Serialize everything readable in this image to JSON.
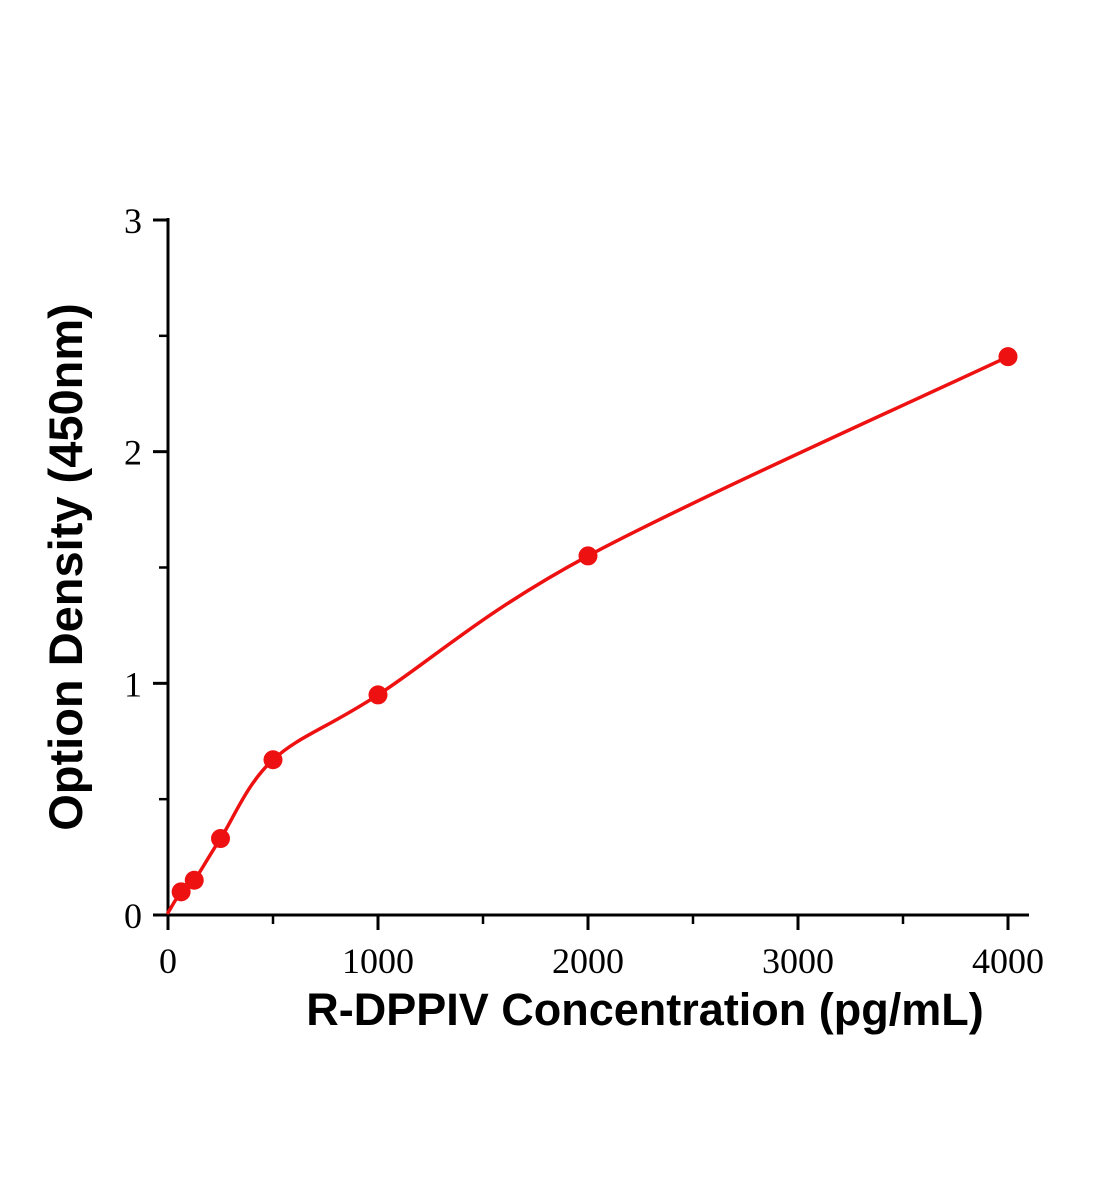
{
  "chart_data": {
    "type": "scatter",
    "title": "",
    "xlabel": "R-DPPIV Concentration (pg/mL)",
    "ylabel": "Option Density (450nm)",
    "x": [
      62.5,
      125,
      250,
      500,
      1000,
      2000,
      4000
    ],
    "y": [
      0.1,
      0.15,
      0.33,
      0.67,
      0.95,
      1.55,
      2.41
    ],
    "curve_start": {
      "x": 0,
      "y": 0.01
    },
    "xlim": [
      0,
      4100
    ],
    "ylim": [
      0,
      3
    ],
    "x_major_ticks": [
      0,
      1000,
      2000,
      3000,
      4000
    ],
    "x_major_tick_labels": [
      "0",
      "1000",
      "2000",
      "3000",
      "4000"
    ],
    "x_minor_ticks": [
      500,
      1500,
      2500,
      3500
    ],
    "y_major_ticks": [
      0,
      1,
      2,
      3
    ],
    "y_major_tick_labels": [
      "0",
      "1",
      "2",
      "3"
    ],
    "y_minor_ticks": [
      0.5,
      1.5,
      2.5
    ],
    "legend": [],
    "grid": false,
    "line_color": "#ee1111",
    "marker_color": "#ee1111",
    "axis_color": "#000000"
  }
}
